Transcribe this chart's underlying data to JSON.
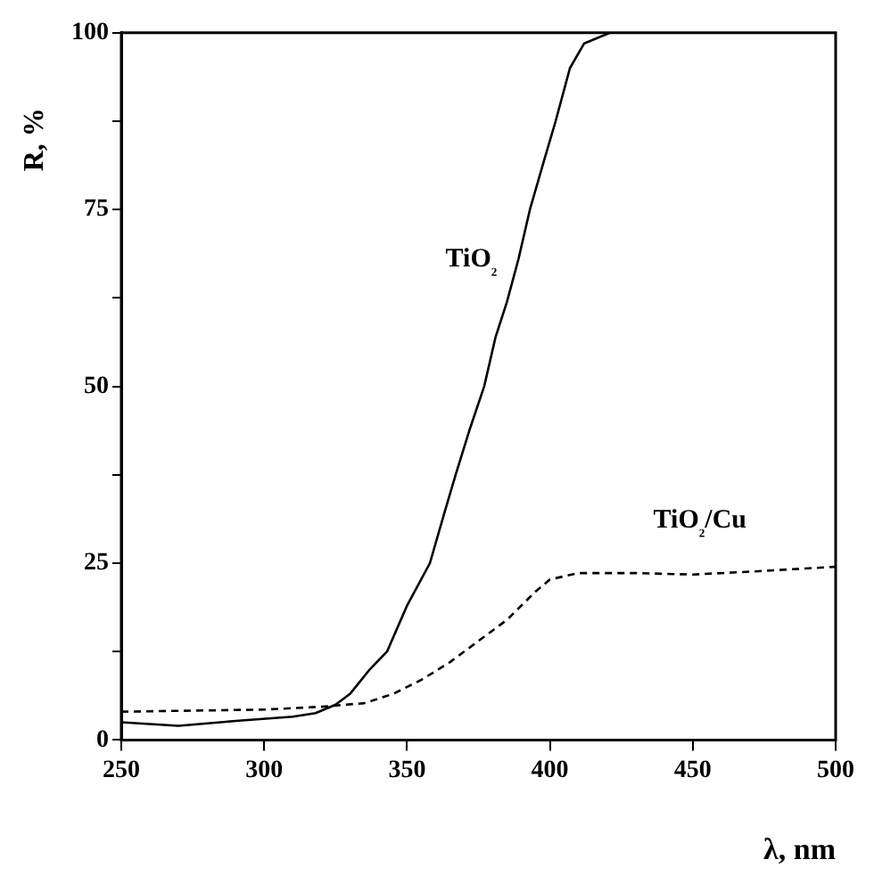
{
  "chart_data": {
    "type": "line",
    "xlabel": "λ, nm",
    "ylabel": "R, %",
    "xlim": [
      250,
      500
    ],
    "xticks": [
      250,
      300,
      350,
      400,
      450,
      500
    ],
    "ylim": [
      0,
      100
    ],
    "yticks": [
      0,
      {
        "value": 12.5,
        "label": null
      },
      25,
      {
        "value": 37.5,
        "label": null
      },
      50,
      {
        "value": 62.5,
        "label": null
      },
      75,
      {
        "value": 87.5,
        "label": null
      },
      100
    ],
    "grid": false,
    "legend": false,
    "marker": "none",
    "series": [
      {
        "name": "TiO₂",
        "color": "#000000",
        "line_style": "solid",
        "x": [
          250,
          270,
          290,
          310,
          318,
          325,
          330,
          337,
          343,
          350,
          358,
          363,
          367,
          372,
          377,
          381,
          385,
          389,
          393,
          398,
          402,
          405,
          407,
          412,
          421,
          500
        ],
        "values": [
          2.5,
          2,
          2.7,
          3.3,
          3.8,
          5,
          6.5,
          10,
          12.5,
          19,
          25,
          32,
          37.5,
          44,
          50,
          57,
          62,
          68,
          75,
          82,
          87.5,
          92,
          95,
          98.5,
          100,
          100
        ]
      },
      {
        "name": "TiO₂/Cu",
        "color": "#000000",
        "line_style": "dashed",
        "x": [
          250,
          300,
          320,
          335,
          345,
          355,
          365,
          375,
          385,
          395,
          400,
          410,
          430,
          450,
          470,
          500
        ],
        "values": [
          4,
          4.3,
          4.7,
          5.2,
          6.5,
          8.5,
          11,
          14,
          17,
          21,
          22.7,
          23.6,
          23.6,
          23.4,
          23.8,
          24.5
        ]
      }
    ]
  }
}
